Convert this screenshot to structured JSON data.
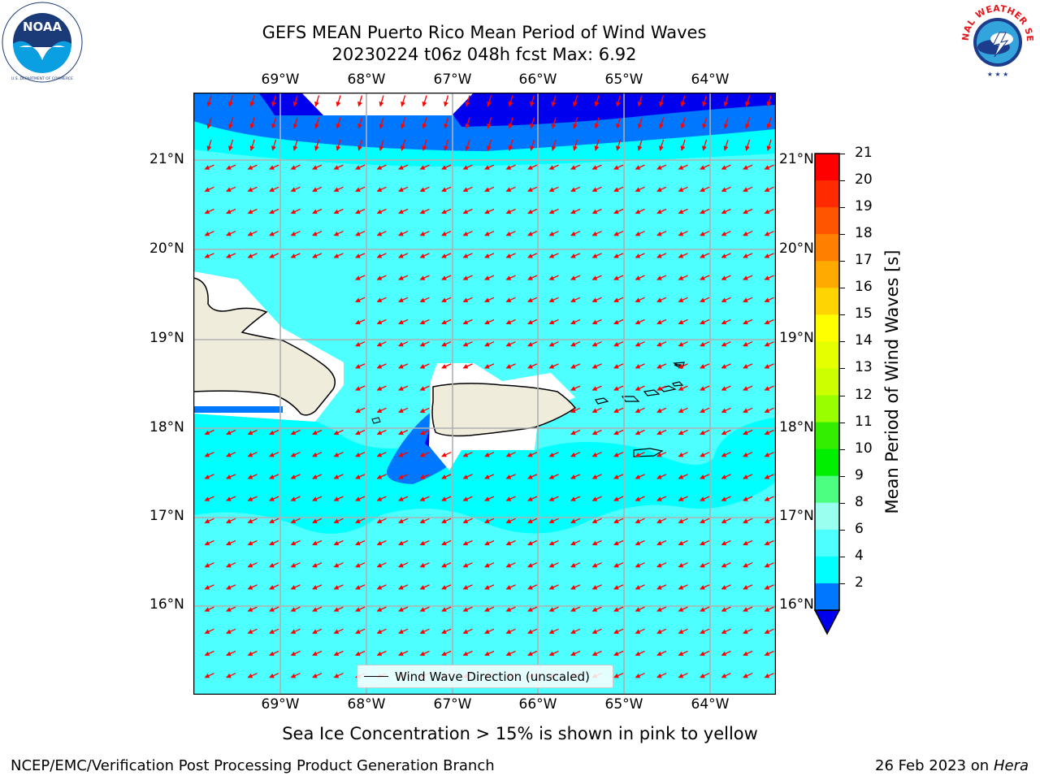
{
  "header": {
    "title_line1": "GEFS MEAN Puerto Rico Mean Period of Wind Waves",
    "title_line2": "20230224 t06z 048h fcst   Max: 6.92"
  },
  "logos": {
    "noara_text": "NOAA",
    "nws_text": "NATIONAL WEATHER SERVICE",
    "noaa_ring_text": "NATIONAL OCEANIC AND ATMOSPHERIC ADMINISTRATION · U.S. DEPARTMENT OF COMMERCE"
  },
  "map": {
    "lon_labels": [
      "69°W",
      "68°W",
      "67°W",
      "66°W",
      "65°W",
      "64°W"
    ],
    "lat_labels": [
      "21°N",
      "20°N",
      "19°N",
      "18°N",
      "17°N",
      "16°N"
    ],
    "legend_label": "Wind Wave Direction (unscaled)",
    "arrow_color": "#ff0000",
    "field_colors": {
      "2-4": "#0000ee",
      "4-6": "#0077ff",
      "6-8": "#00ffff",
      "8-9": "#4dffff",
      "land": "#efecdc"
    }
  },
  "colorbar": {
    "label": "Mean Period of Wind Waves [s]",
    "ticks": [
      "21",
      "20",
      "19",
      "18",
      "17",
      "16",
      "15",
      "14",
      "13",
      "12",
      "11",
      "10",
      "9",
      "8",
      "6",
      "4",
      "2"
    ],
    "colors": [
      "#ff0000",
      "#ff2a00",
      "#ff5500",
      "#ff8000",
      "#ffaa00",
      "#ffd400",
      "#ffff00",
      "#e6ff00",
      "#ccff00",
      "#99ff00",
      "#33ee00",
      "#00ee00",
      "#4dff80",
      "#99ffee",
      "#4dffff",
      "#00ffff",
      "#0077ff"
    ],
    "extend_color": "#0000ee"
  },
  "footer": {
    "sea_ice_note": "Sea Ice Concentration > 15% is shown in pink to yellow",
    "branch": "NCEP/EMC/Verification Post Processing Product Generation Branch",
    "date": "26 Feb 2023 on",
    "machine": "Hera"
  }
}
